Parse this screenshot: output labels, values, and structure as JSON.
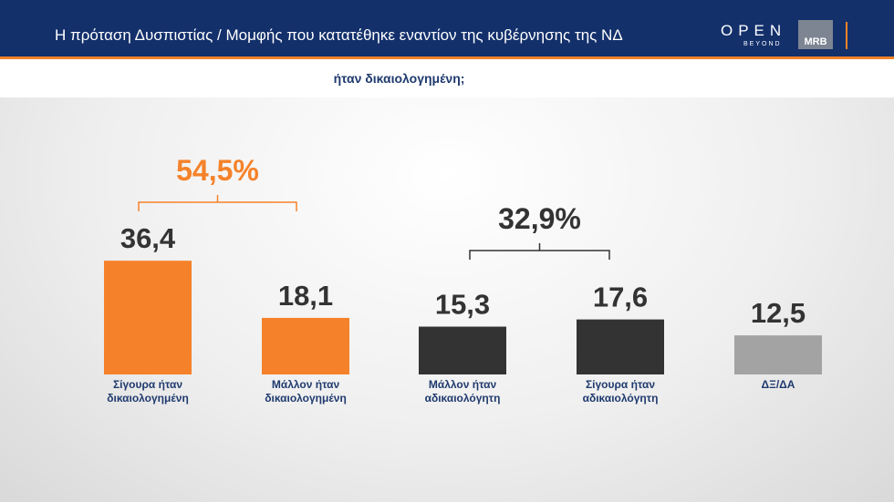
{
  "header": {
    "title": "Η πρόταση Δυσπιστίας / Μομφής που κατατέθηκε εναντίον της κυβέρνησης της ΝΔ",
    "logo_open": "OPEN",
    "logo_beyond": "BEYOND",
    "logo_mrb": "MRB"
  },
  "chart_data": {
    "type": "bar",
    "subtitle": "ήταν δικαιολογημένη;",
    "categories": [
      "Σίγουρα ήταν δικαιολογημένη",
      "Μάλλον ήταν δικαιολογημένη",
      "Μάλλον ήταν αδικαιολόγητη",
      "Σίγουρα ήταν αδικαιολόγητη",
      "ΔΞ/ΔΑ"
    ],
    "values": [
      36.4,
      18.1,
      15.3,
      17.6,
      12.5
    ],
    "value_labels": [
      "36,4",
      "18,1",
      "15,3",
      "17,6",
      "12,5"
    ],
    "colors": [
      "#f5822a",
      "#f5822a",
      "#333333",
      "#333333",
      "#a3a3a3"
    ],
    "annotations": [
      {
        "value": 54.5,
        "label": "54,5%",
        "color": "#f5822a"
      },
      {
        "value": 32.9,
        "label": "32,9%",
        "color": "#333333"
      }
    ]
  }
}
